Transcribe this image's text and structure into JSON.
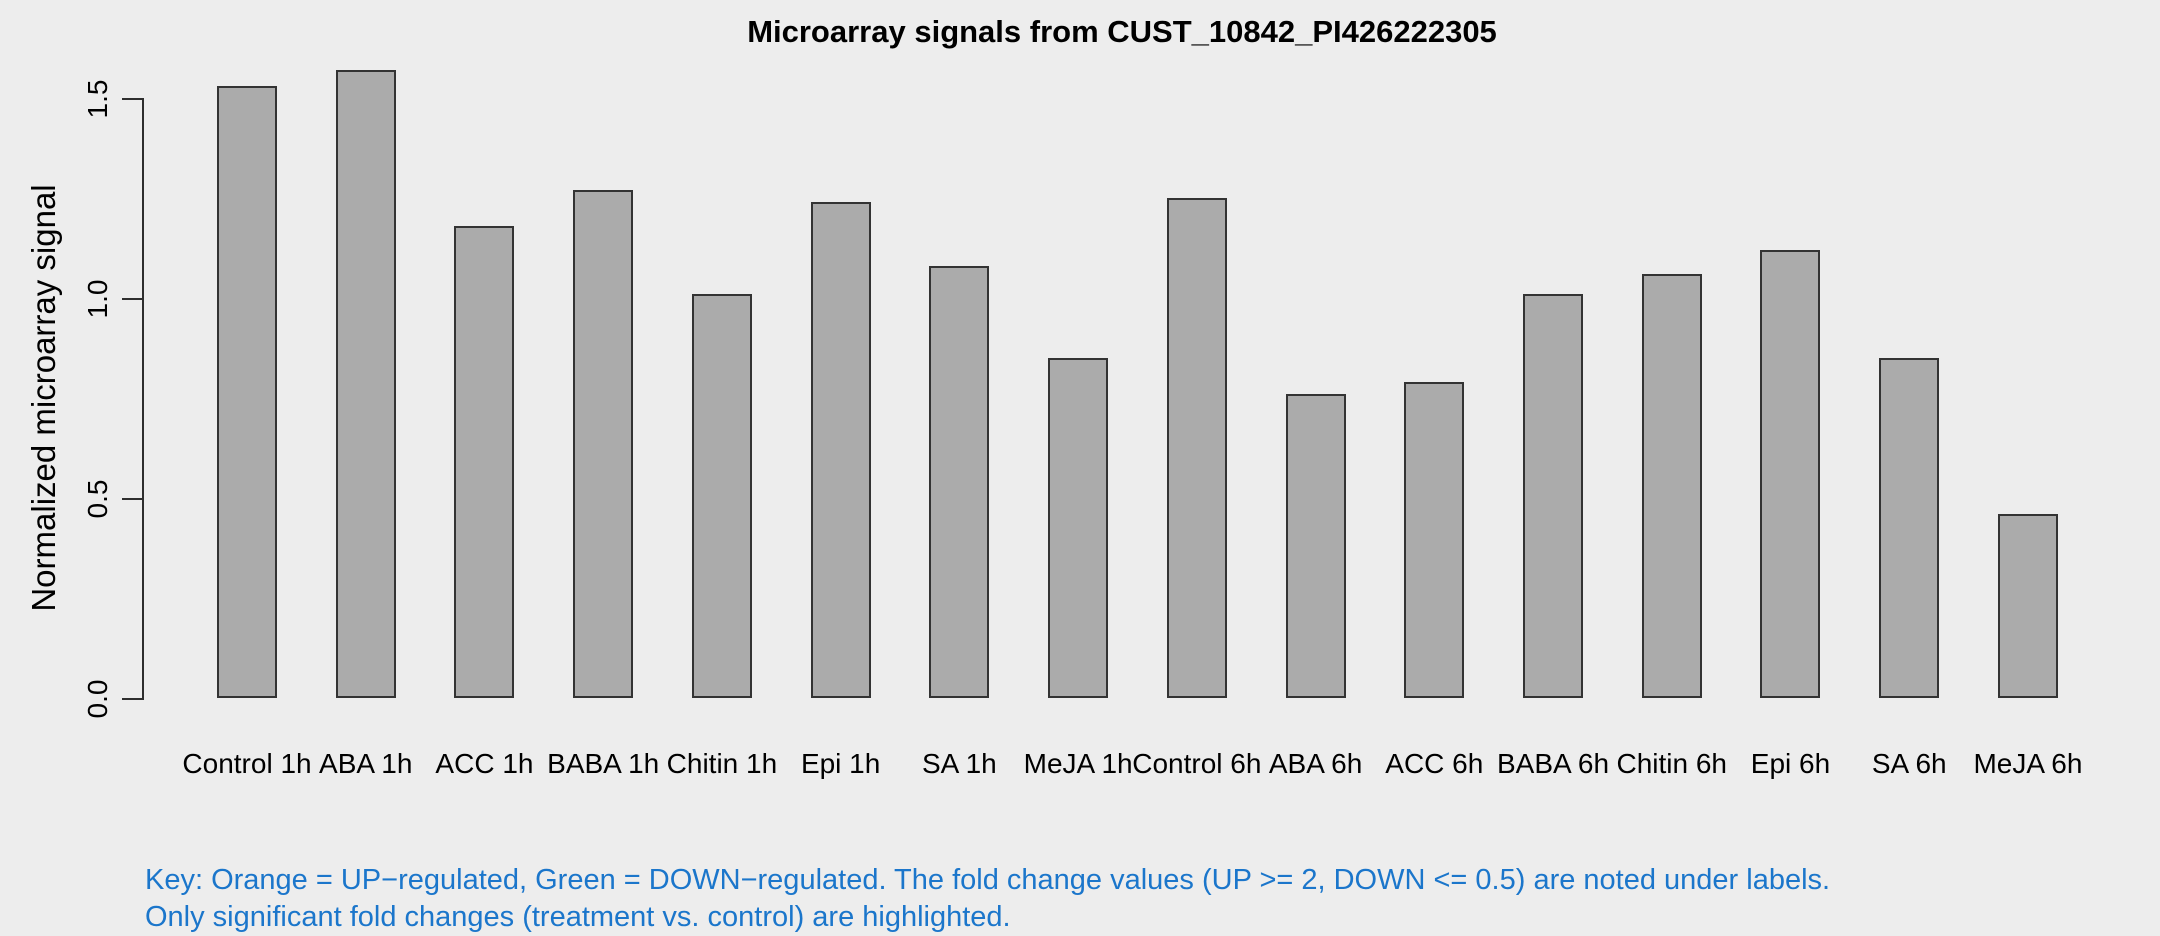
{
  "chart_data": {
    "type": "bar",
    "title": "Microarray signals from CUST_10842_PI426222305",
    "xlabel": "",
    "ylabel": "Normalized microarray signal",
    "categories": [
      "Control 1h",
      "ABA 1h",
      "ACC 1h",
      "BABA 1h",
      "Chitin 1h",
      "Epi 1h",
      "SA 1h",
      "MeJA 1h",
      "Control 6h",
      "ABA 6h",
      "ACC 6h",
      "BABA 6h",
      "Chitin 6h",
      "Epi 6h",
      "SA 6h",
      "MeJA 6h"
    ],
    "values": [
      1.53,
      1.57,
      1.18,
      1.27,
      1.01,
      1.24,
      1.08,
      0.85,
      1.25,
      0.76,
      0.79,
      1.01,
      1.06,
      1.12,
      0.85,
      0.46
    ],
    "yticks": [
      "0.0",
      "0.5",
      "1.0",
      "1.5"
    ],
    "ylim": [
      0,
      1.57
    ],
    "grid": false,
    "legend_position": "none",
    "bar_fill_color": "#ABABAB",
    "bar_border_color": "#333333",
    "background_color": "#EDEDED"
  },
  "key_note": {
    "line1": "Key: Orange = UP−regulated, Green = DOWN−regulated. The fold change values (UP >= 2, DOWN <= 0.5) are noted under labels.",
    "line2": "Only significant fold changes (treatment vs. control) are highlighted.",
    "text_color": "#1B76CB"
  }
}
